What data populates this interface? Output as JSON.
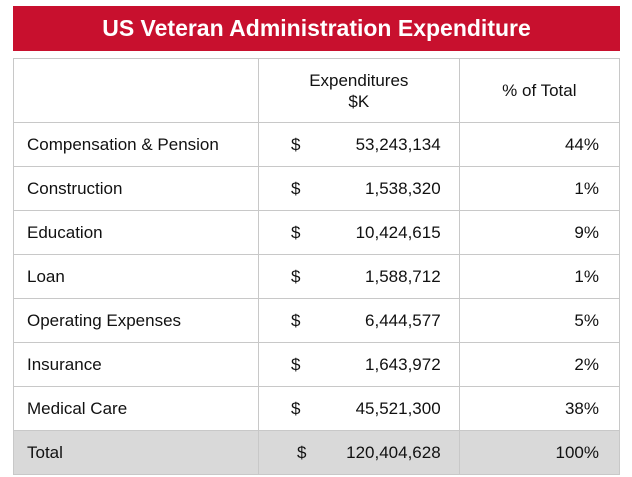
{
  "title": "US Veteran Administration Expenditure",
  "table": {
    "headers": {
      "label": "",
      "expenditures_line1": "Expenditures",
      "expenditures_line2": "$K",
      "pct": "% of Total"
    },
    "rows": [
      {
        "label": "Compensation & Pension",
        "currency": "$",
        "amount": "53,243,134",
        "pct": "44%"
      },
      {
        "label": "Construction",
        "currency": "$",
        "amount": "1,538,320",
        "pct": "1%"
      },
      {
        "label": "Education",
        "currency": "$",
        "amount": "10,424,615",
        "pct": "9%"
      },
      {
        "label": "Loan",
        "currency": "$",
        "amount": "1,588,712",
        "pct": "1%"
      },
      {
        "label": "Operating Expenses",
        "currency": "$",
        "amount": "6,444,577",
        "pct": "5%"
      },
      {
        "label": "Insurance",
        "currency": "$",
        "amount": "1,643,972",
        "pct": "2%"
      },
      {
        "label": "Medical Care",
        "currency": "$",
        "amount": "45,521,300",
        "pct": "38%"
      }
    ],
    "total": {
      "label": "Total",
      "currency": "$",
      "amount": "120,404,628",
      "pct": "100%"
    }
  },
  "colors": {
    "title_bg": "#c8102e",
    "total_row_bg": "#d9d9d9",
    "grid": "#c8c8c8"
  }
}
